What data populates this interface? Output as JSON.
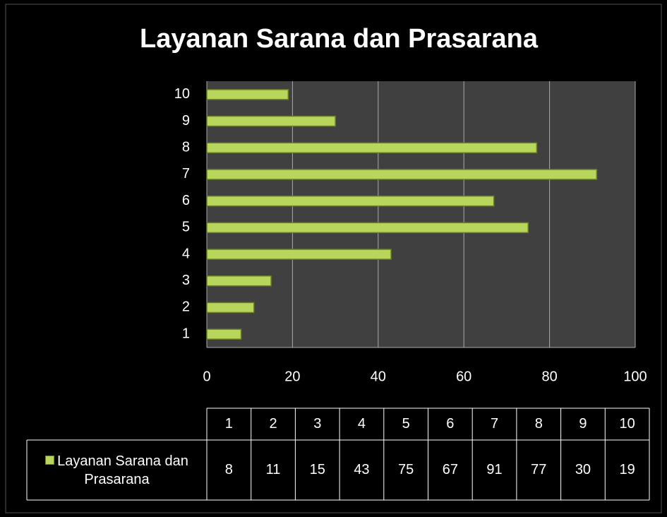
{
  "chart_data": {
    "type": "bar",
    "orientation": "horizontal",
    "title": "Layanan Sarana dan Prasarana",
    "categories": [
      "1",
      "2",
      "3",
      "4",
      "5",
      "6",
      "7",
      "8",
      "9",
      "10"
    ],
    "series": [
      {
        "name": "Layanan Sarana dan Prasarana",
        "color": "#b9d65c",
        "values": [
          8,
          11,
          15,
          43,
          75,
          67,
          91,
          77,
          30,
          19
        ]
      }
    ],
    "xlim": [
      0,
      100
    ],
    "xticks": [
      0,
      20,
      40,
      60,
      80,
      100
    ],
    "grid": true
  }
}
